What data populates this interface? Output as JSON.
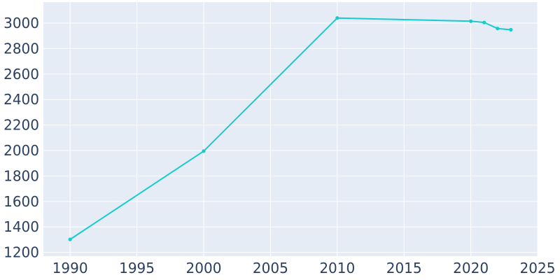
{
  "chart_data": {
    "type": "line",
    "title": "",
    "xlabel": "",
    "ylabel": "",
    "xlim": [
      1988,
      2025
    ],
    "ylim": [
      1170,
      3165
    ],
    "x_ticks": [
      1990,
      1995,
      2000,
      2005,
      2010,
      2015,
      2020,
      2025
    ],
    "y_ticks": [
      1200,
      1400,
      1600,
      1800,
      2000,
      2200,
      2400,
      2600,
      2800,
      3000
    ],
    "grid": true,
    "legend": "none",
    "series": [
      {
        "x": [
          1990,
          2000,
          2010,
          2020,
          2021,
          2022,
          2023
        ],
        "y": [
          1302,
          1995,
          3040,
          3015,
          3005,
          2958,
          2948
        ]
      }
    ],
    "colors": {
      "background": "#e5ecf6",
      "grid": "#ffffff",
      "line": "#17ccce",
      "text": "#2a3f5f"
    }
  }
}
